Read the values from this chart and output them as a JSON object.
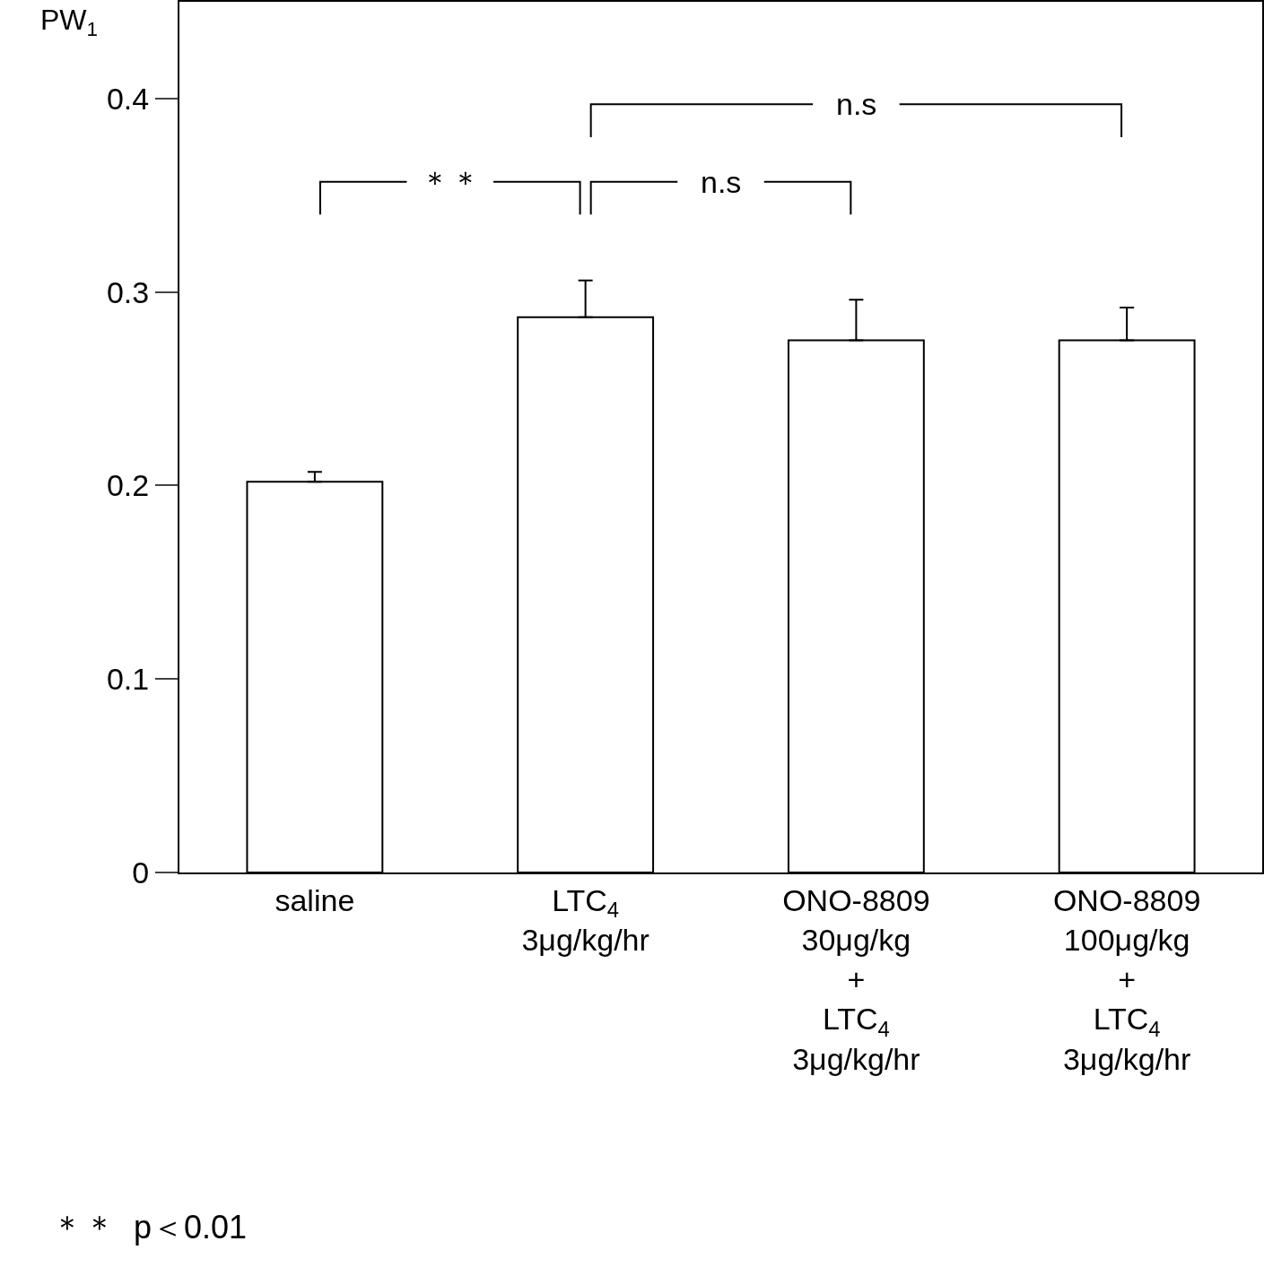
{
  "chart_data": {
    "type": "bar",
    "ylabel": "PW$_{1}$",
    "categories": [
      "saline",
      "LTC$_{4}$\n3μg/kg/hr",
      "ONO-8809\n30μg/kg\n+\nLTC$_{4}$\n3μg/kg/hr",
      "ONO-8809\n100μg/kg\n+\nLTC$_{4}$\n3μg/kg/hr"
    ],
    "values": [
      0.202,
      0.287,
      0.275,
      0.275
    ],
    "errors": [
      [
        0.202,
        0.207
      ],
      [
        0.287,
        0.306
      ],
      [
        0.275,
        0.296
      ],
      [
        0.275,
        0.292
      ]
    ],
    "color": "#ffffff",
    "ylim": [
      0,
      0.45
    ],
    "yticks": [
      0,
      0.1,
      0.2,
      0.3,
      0.4
    ],
    "grid": false,
    "legend": false,
    "annotations": [
      "＊＊",
      "n.s",
      "n.s",
      "＊＊  p＜0.01"
    ]
  }
}
